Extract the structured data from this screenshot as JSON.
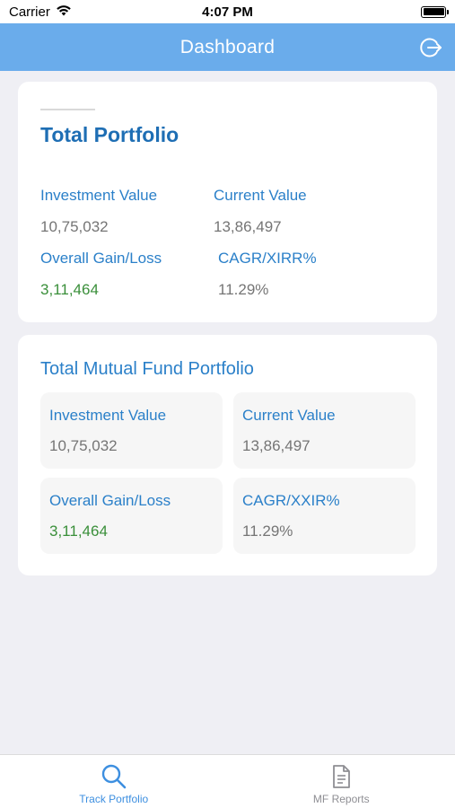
{
  "status": {
    "carrier": "Carrier",
    "time": "4:07 PM"
  },
  "nav": {
    "title": "Dashboard",
    "logout_icon": "logout-icon"
  },
  "total_portfolio": {
    "title": "Total Portfolio",
    "investment_label": "Investment Value",
    "investment_value": "10,75,032",
    "current_label": "Current Value",
    "current_value": "13,86,497",
    "gain_label": "Overall Gain/Loss",
    "gain_value": "3,11,464",
    "cagr_label": "CAGR/XIRR%",
    "cagr_value": "11.29%"
  },
  "mf_portfolio": {
    "title": "Total Mutual Fund Portfolio",
    "investment_label": "Investment Value",
    "investment_value": "10,75,032",
    "current_label": "Current Value",
    "current_value": "13,86,497",
    "gain_label": "Overall Gain/Loss",
    "gain_value": "3,11,464",
    "cagr_label": "CAGR/XXIR%",
    "cagr_value": "11.29%"
  },
  "tabs": [
    {
      "label": "Track Portfolio",
      "icon": "search-icon",
      "active": true
    },
    {
      "label": "MF Reports",
      "icon": "document-icon",
      "active": false
    }
  ],
  "colors": {
    "nav_bar": "#6aaceb",
    "accent_blue": "#2b80c9",
    "title_blue": "#1e6eb4",
    "gain_green": "#3a8f3a",
    "value_gray": "#757575",
    "tab_active": "#3d8fe0"
  }
}
